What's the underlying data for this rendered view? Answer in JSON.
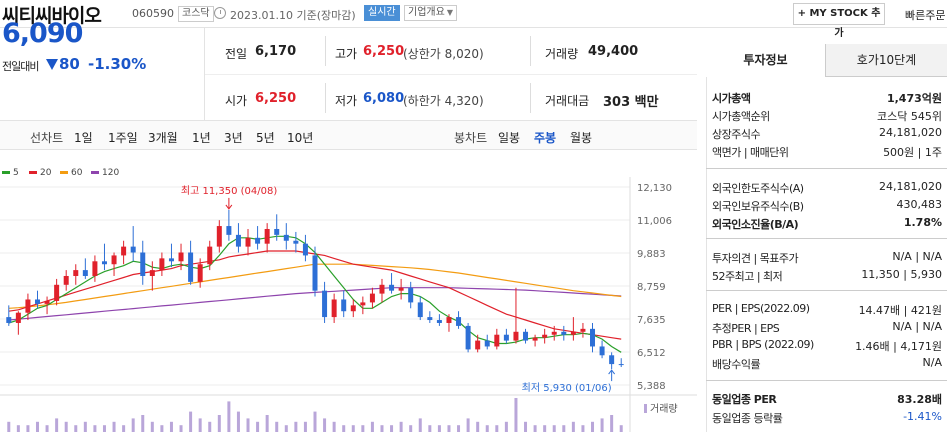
{
  "header": {
    "name": "씨티씨바이오",
    "code": "060590",
    "market": "코스닥",
    "date": "2023.01.10 기준(장마감)",
    "realtime": "실시간",
    "company": "기업개요",
    "mystock": "+ MY STOCK 추가",
    "quick": "빠른주문"
  },
  "price": {
    "current": "6,090",
    "change_label": "전일대비",
    "change": "80",
    "change_pct": "-1.30%"
  },
  "quote": {
    "prev_label": "전일",
    "prev": "6,170",
    "high_label": "고가",
    "high": "6,250",
    "upper_limit": "(상한가 8,020)",
    "volume_label": "거래량",
    "volume": "49,400",
    "open_label": "시가",
    "open": "6,250",
    "low_label": "저가",
    "low": "6,080",
    "lower_limit": "(하한가 4,320)",
    "amount_label": "거래대금",
    "amount": "303 백만"
  },
  "periods": {
    "line_label": "선차트",
    "items": [
      "1일",
      "1주일",
      "3개월",
      "1년",
      "3년",
      "5년",
      "10년"
    ],
    "candle_label": "봉차트",
    "candle_items": [
      "일봉",
      "주봉",
      "월봉"
    ],
    "selected": "주봉"
  },
  "chart_data": {
    "type": "candlestick",
    "period": "weekly",
    "ylim": [
      5388,
      12130
    ],
    "yticks": [
      "12,130",
      "11,006",
      "9,883",
      "8,759",
      "7,635",
      "6,512",
      "5,388"
    ],
    "ma_legend": [
      {
        "name": "5",
        "color": "#2aa02a"
      },
      {
        "name": "20",
        "color": "#e0212b"
      },
      {
        "name": "60",
        "color": "#f39c12"
      },
      {
        "name": "120",
        "color": "#8e44ad"
      }
    ],
    "high_annotation": "최고 11,350 (04/08)",
    "low_annotation": "최저 5,930 (01/06)",
    "volume_label": "거래량",
    "candles": [
      [
        7700,
        8100,
        7400,
        7500
      ],
      [
        7500,
        7900,
        7100,
        7850
      ],
      [
        7850,
        8500,
        7600,
        8300
      ],
      [
        8300,
        8600,
        8000,
        8150
      ],
      [
        8150,
        8400,
        7800,
        8250
      ],
      [
        8250,
        9000,
        8100,
        8800
      ],
      [
        8800,
        9300,
        8600,
        9100
      ],
      [
        9100,
        9500,
        8800,
        9300
      ],
      [
        9300,
        9700,
        9000,
        9100
      ],
      [
        9100,
        9800,
        8900,
        9600
      ],
      [
        9600,
        10200,
        9300,
        9500
      ],
      [
        9500,
        9900,
        9100,
        9800
      ],
      [
        9800,
        10300,
        9500,
        10100
      ],
      [
        10100,
        10800,
        9600,
        9900
      ],
      [
        9900,
        10300,
        8800,
        9100
      ],
      [
        9100,
        9600,
        8600,
        9300
      ],
      [
        9300,
        9900,
        9100,
        9700
      ],
      [
        9700,
        10200,
        9400,
        9600
      ],
      [
        9600,
        10200,
        9300,
        9900
      ],
      [
        9900,
        10300,
        8800,
        8900
      ],
      [
        8900,
        9700,
        8700,
        9500
      ],
      [
        9500,
        10300,
        9300,
        10100
      ],
      [
        10100,
        11000,
        9900,
        10800
      ],
      [
        10800,
        11350,
        10300,
        10500
      ],
      [
        10500,
        10900,
        9900,
        10100
      ],
      [
        10100,
        10700,
        9800,
        10400
      ],
      [
        10400,
        10800,
        10000,
        10200
      ],
      [
        10200,
        10900,
        9900,
        10700
      ],
      [
        10700,
        11200,
        10300,
        10500
      ],
      [
        10500,
        10900,
        10000,
        10300
      ],
      [
        10300,
        10600,
        9900,
        10200
      ],
      [
        10200,
        10500,
        9600,
        9800
      ],
      [
        9800,
        10100,
        8400,
        8600
      ],
      [
        8600,
        8900,
        7500,
        7700
      ],
      [
        7700,
        8500,
        7500,
        8300
      ],
      [
        8300,
        8600,
        7700,
        7900
      ],
      [
        7900,
        8300,
        7700,
        8100
      ],
      [
        8100,
        8400,
        7800,
        8200
      ],
      [
        8200,
        8700,
        8000,
        8500
      ],
      [
        8500,
        9000,
        8200,
        8800
      ],
      [
        8800,
        9200,
        8500,
        8600
      ],
      [
        8600,
        9000,
        8300,
        8700
      ],
      [
        8700,
        8900,
        8000,
        8200
      ],
      [
        8200,
        8400,
        7600,
        7700
      ],
      [
        7700,
        7900,
        7500,
        7600
      ],
      [
        7600,
        7800,
        7400,
        7500
      ],
      [
        7500,
        7800,
        7200,
        7700
      ],
      [
        7700,
        7900,
        7300,
        7400
      ],
      [
        7400,
        7500,
        6500,
        6600
      ],
      [
        6600,
        7100,
        6500,
        6900
      ],
      [
        6900,
        7100,
        6600,
        6700
      ],
      [
        6700,
        7300,
        6600,
        7100
      ],
      [
        7100,
        7300,
        6800,
        6900
      ],
      [
        6900,
        8700,
        6800,
        7200
      ],
      [
        7200,
        7300,
        6800,
        6900
      ],
      [
        6900,
        7100,
        6700,
        7000
      ],
      [
        7000,
        7300,
        6800,
        7100
      ],
      [
        7100,
        7400,
        6900,
        7200
      ],
      [
        7200,
        7400,
        6900,
        7100
      ],
      [
        7100,
        7700,
        6900,
        7200
      ],
      [
        7200,
        7500,
        7000,
        7300
      ],
      [
        7300,
        7500,
        6500,
        6700
      ],
      [
        6700,
        6900,
        6300,
        6400
      ],
      [
        6400,
        6500,
        5930,
        6100
      ],
      [
        6100,
        6300,
        6000,
        6090
      ]
    ],
    "ma": {
      "5": [
        7500,
        7600,
        7800,
        8000,
        8100,
        8300,
        8500,
        8700,
        8900,
        9100,
        9250,
        9350,
        9450,
        9600,
        9550,
        9400,
        9350,
        9450,
        9500,
        9400,
        9350,
        9450,
        9800,
        10200,
        10400,
        10400,
        10350,
        10400,
        10450,
        10450,
        10400,
        10200,
        9900,
        9500,
        9100,
        8700,
        8300,
        8000,
        8000,
        8200,
        8400,
        8500,
        8500,
        8400,
        8200,
        7900,
        7700,
        7550,
        7250,
        7000,
        6900,
        6800,
        6800,
        6850,
        6950,
        7000,
        7000,
        7050,
        7100,
        7100,
        7150,
        7100,
        6950,
        6700,
        6500
      ],
      "20": [
        7900,
        7950,
        8050,
        8150,
        8250,
        8350,
        8450,
        8550,
        8650,
        8750,
        8850,
        8950,
        9050,
        9150,
        9200,
        9250,
        9300,
        9350,
        9450,
        9500,
        9550,
        9600,
        9650,
        9750,
        9800,
        9850,
        9900,
        9950,
        9950,
        9950,
        9950,
        9900,
        9850,
        9800,
        9700,
        9600,
        9500,
        9450,
        9400,
        9350,
        9300,
        9200,
        9100,
        9000,
        8900,
        8800,
        8700,
        8550,
        8400,
        8250,
        8100,
        7950,
        7800,
        7700,
        7600,
        7500,
        7400,
        7300,
        7250,
        7200,
        7150,
        7100,
        7050,
        7000,
        6950
      ],
      "60": [
        8000,
        8020,
        8050,
        8080,
        8120,
        8160,
        8200,
        8250,
        8300,
        8350,
        8400,
        8450,
        8500,
        8550,
        8600,
        8650,
        8700,
        8750,
        8800,
        8850,
        8900,
        8950,
        9000,
        9050,
        9100,
        9150,
        9200,
        9250,
        9300,
        9350,
        9400,
        9450,
        9500,
        9500,
        9500,
        9500,
        9500,
        9480,
        9460,
        9440,
        9420,
        9400,
        9380,
        9350,
        9320,
        9280,
        9240,
        9200,
        9150,
        9100,
        9050,
        9000,
        8950,
        8900,
        8850,
        8800,
        8750,
        8700,
        8650,
        8600,
        8560,
        8520,
        8480,
        8440,
        8400
      ],
      "120": [
        7600,
        7630,
        7660,
        7690,
        7720,
        7750,
        7780,
        7810,
        7840,
        7870,
        7900,
        7930,
        7960,
        7990,
        8020,
        8050,
        8080,
        8110,
        8140,
        8170,
        8200,
        8230,
        8260,
        8290,
        8320,
        8350,
        8380,
        8410,
        8440,
        8470,
        8500,
        8520,
        8540,
        8560,
        8580,
        8600,
        8620,
        8640,
        8660,
        8680,
        8700,
        8700,
        8700,
        8700,
        8700,
        8700,
        8700,
        8690,
        8680,
        8670,
        8660,
        8650,
        8640,
        8630,
        8620,
        8600,
        8580,
        8560,
        8540,
        8520,
        8500,
        8480,
        8460,
        8440,
        8420
      ]
    },
    "volume": [
      3,
      2,
      2,
      3,
      2,
      4,
      3,
      2,
      3,
      2,
      2,
      3,
      2,
      4,
      5,
      3,
      2,
      3,
      2,
      6,
      4,
      3,
      5,
      9,
      6,
      4,
      3,
      5,
      3,
      2,
      3,
      3,
      6,
      4,
      3,
      2,
      2,
      2,
      3,
      2,
      2,
      3,
      2,
      4,
      2,
      2,
      2,
      2,
      4,
      3,
      2,
      2,
      3,
      10,
      3,
      2,
      2,
      2,
      2,
      3,
      2,
      3,
      4,
      5,
      2
    ]
  },
  "side": {
    "tab_invest": "투자정보",
    "tab_quote": "호가10단계",
    "rows": [
      {
        "label": "시가총액",
        "value": "1,473억원",
        "bold": true
      },
      {
        "label": "시가총액순위",
        "value": "코스닥  545위"
      },
      {
        "label": "상장주식수",
        "value": "24,181,020"
      },
      {
        "label": "액면가 | 매매단위",
        "value": "500원  |  1주"
      },
      {
        "label": "외국인한도주식수(A)",
        "value": "24,181,020"
      },
      {
        "label": "외국인보유주식수(B)",
        "value": "430,483"
      },
      {
        "label": "외국인소진율(B/A)",
        "value": "1.78%",
        "bold": true
      },
      {
        "label": "투자의견 | 목표주가",
        "value": "N/A  |  N/A"
      },
      {
        "label": "52주최고 | 최저",
        "value": "11,350  |  5,930"
      },
      {
        "label": "PER | EPS(2022.09)",
        "value": "14.47배  |  421원"
      },
      {
        "label": "추정PER | EPS",
        "value": "N/A  |  N/A"
      },
      {
        "label": "PBR | BPS (2022.09)",
        "value": "1.46배  |  4,171원"
      },
      {
        "label": "배당수익률",
        "value": "N/A"
      },
      {
        "label": "동일업종 PER",
        "value": "83.28배",
        "bold": true
      },
      {
        "label": "동일업종 등락률",
        "value": "-1.41%",
        "blue": true
      }
    ]
  }
}
